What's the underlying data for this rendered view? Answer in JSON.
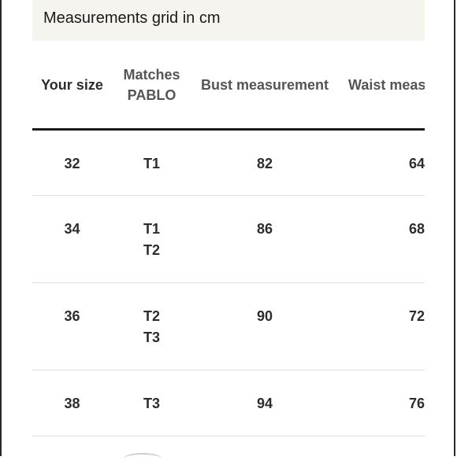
{
  "banner": {
    "title": "Measurements grid in cm"
  },
  "table": {
    "headers": {
      "size": "Your size",
      "matches_line1": "Matches",
      "matches_line2": "PABLO",
      "bust": "Bust measurement",
      "waist": "Waist measurement"
    },
    "rows": [
      {
        "size": "32",
        "match1": "T1",
        "match2": "",
        "bust": "82",
        "waist": "64"
      },
      {
        "size": "34",
        "match1": "T1",
        "match2": "T2",
        "bust": "86",
        "waist": "68"
      },
      {
        "size": "36",
        "match1": "T2",
        "match2": "T3",
        "bust": "90",
        "waist": "72"
      },
      {
        "size": "38",
        "match1": "T3",
        "match2": "",
        "bust": "94",
        "waist": "76"
      }
    ]
  }
}
